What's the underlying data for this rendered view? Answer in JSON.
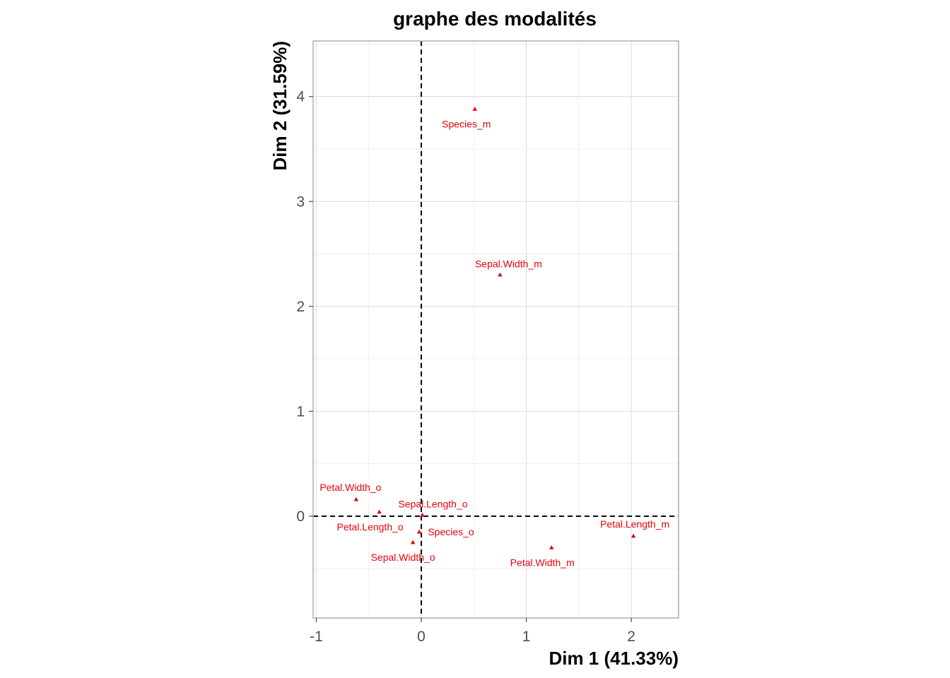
{
  "chart_data": {
    "type": "scatter",
    "title": "graphe des modalités",
    "xlabel": "Dim 1 (41.33%)",
    "ylabel": "Dim 2 (31.59%)",
    "xlim": [
      -1.03,
      2.45
    ],
    "ylim": [
      -0.97,
      4.53
    ],
    "x_ticks": [
      -1,
      0,
      1,
      2
    ],
    "y_ticks": [
      0,
      1,
      2,
      3,
      4
    ],
    "x_tick_labels": [
      "-1",
      "0",
      "1",
      "2"
    ],
    "y_tick_labels": [
      "0",
      "1",
      "2",
      "3",
      "4"
    ],
    "grid": true,
    "reference_lines": {
      "x": 0,
      "y": 0,
      "style": "dashed"
    },
    "point_color": "#e8000b",
    "marker": "triangle",
    "points": [
      {
        "label": "Species_m",
        "x": 0.51,
        "y": 3.88
      },
      {
        "label": "Sepal.Width_m",
        "x": 0.75,
        "y": 2.3
      },
      {
        "label": "Petal.Width_o",
        "x": -0.62,
        "y": 0.16
      },
      {
        "label": "Petal.Length_o",
        "x": -0.4,
        "y": 0.04
      },
      {
        "label": "Sepal.Length_o",
        "x": 0.01,
        "y": 0.01
      },
      {
        "label": "Species_o",
        "x": -0.02,
        "y": -0.15
      },
      {
        "label": "Sepal.Width_o",
        "x": -0.08,
        "y": -0.25
      },
      {
        "label": "Petal.Width_m",
        "x": 1.24,
        "y": -0.3
      },
      {
        "label": "Petal.Length_m",
        "x": 2.02,
        "y": -0.19
      }
    ]
  }
}
